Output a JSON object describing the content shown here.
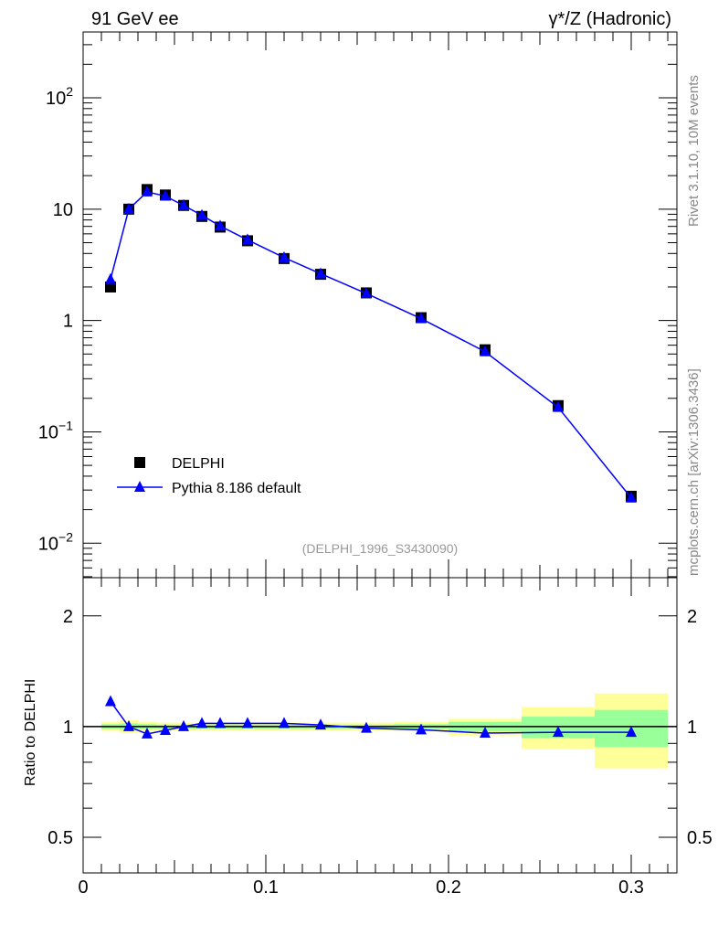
{
  "header": {
    "left": "91 GeV ee",
    "right": "γ*/Z (Hadronic)"
  },
  "side_text": {
    "rivet": "Rivet 3.1.10,  10M events",
    "mcplots": "mcplots.cern.ch [arXiv:1306.3436]"
  },
  "analysis_ref": "(DELPHI_1996_S3430090)",
  "legend": {
    "data": "DELPHI",
    "mc": "Pythia 8.186 default"
  },
  "colors": {
    "data": "#000000",
    "mc": "#0000ff",
    "band_outer": "#ffff99",
    "band_inner": "#99ff99"
  },
  "chart_data": [
    {
      "type": "scatter",
      "title": "",
      "xlabel": "",
      "ylabel": "",
      "xlim": [
        0,
        0.325
      ],
      "ylim": [
        0.0049,
        390
      ],
      "yscale": "log",
      "yticks": [
        {
          "v": 0.01,
          "base": "10",
          "exp": "−2"
        },
        {
          "v": 0.1,
          "base": "10",
          "exp": "−1"
        },
        {
          "v": 1,
          "base": "1",
          "exp": ""
        },
        {
          "v": 10,
          "base": "10",
          "exp": ""
        },
        {
          "v": 100,
          "base": "10",
          "exp": "2"
        }
      ],
      "x": [
        0.015,
        0.025,
        0.035,
        0.045,
        0.055,
        0.065,
        0.075,
        0.09,
        0.11,
        0.13,
        0.155,
        0.185,
        0.22,
        0.26,
        0.3
      ],
      "series": [
        {
          "name": "DELPHI",
          "values": [
            2.0,
            10.0,
            15.0,
            13.4,
            10.8,
            8.6,
            6.9,
            5.2,
            3.6,
            2.6,
            1.77,
            1.06,
            0.546,
            0.172,
            0.0264
          ]
        },
        {
          "name": "Pythia 8.186 default",
          "values": [
            2.34,
            10.0,
            14.3,
            13.1,
            10.8,
            8.8,
            7.05,
            5.3,
            3.67,
            2.63,
            1.75,
            1.04,
            0.525,
            0.166,
            0.0255
          ]
        }
      ],
      "legend_position": "lower-left"
    },
    {
      "type": "scatter",
      "ylabel": "Ratio to DELPHI",
      "xlim": [
        0,
        0.325
      ],
      "ylim": [
        0.4,
        2.54
      ],
      "yscale": "log",
      "yticks": [
        {
          "v": 0.5,
          "label": "0.5"
        },
        {
          "v": 1,
          "label": "1"
        },
        {
          "v": 2,
          "label": "2"
        }
      ],
      "xticks": [
        {
          "v": 0,
          "label": "0"
        },
        {
          "v": 0.1,
          "label": "0.1"
        },
        {
          "v": 0.2,
          "label": "0.2"
        },
        {
          "v": 0.3,
          "label": "0.3"
        }
      ],
      "x": [
        0.015,
        0.025,
        0.035,
        0.045,
        0.055,
        0.065,
        0.075,
        0.09,
        0.11,
        0.13,
        0.155,
        0.185,
        0.22,
        0.26,
        0.3
      ],
      "ratio": [
        1.17,
        1.0,
        0.955,
        0.977,
        1.0,
        1.02,
        1.02,
        1.02,
        1.02,
        1.01,
        0.99,
        0.98,
        0.96,
        0.965,
        0.965
      ],
      "bins": [
        {
          "lo": 0.01,
          "hi": 0.02,
          "outer": [
            0.97,
            1.03
          ],
          "inner": [
            0.985,
            1.015
          ]
        },
        {
          "lo": 0.02,
          "hi": 0.03,
          "outer": [
            0.96,
            1.04
          ],
          "inner": [
            0.98,
            1.02
          ]
        },
        {
          "lo": 0.03,
          "hi": 0.04,
          "outer": [
            0.97,
            1.03
          ],
          "inner": [
            0.985,
            1.015
          ]
        },
        {
          "lo": 0.04,
          "hi": 0.05,
          "outer": [
            0.975,
            1.025
          ],
          "inner": [
            0.988,
            1.012
          ]
        },
        {
          "lo": 0.05,
          "hi": 0.06,
          "outer": [
            0.975,
            1.025
          ],
          "inner": [
            0.988,
            1.012
          ]
        },
        {
          "lo": 0.06,
          "hi": 0.07,
          "outer": [
            0.975,
            1.025
          ],
          "inner": [
            0.988,
            1.012
          ]
        },
        {
          "lo": 0.07,
          "hi": 0.08,
          "outer": [
            0.975,
            1.025
          ],
          "inner": [
            0.988,
            1.012
          ]
        },
        {
          "lo": 0.08,
          "hi": 0.1,
          "outer": [
            0.975,
            1.025
          ],
          "inner": [
            0.988,
            1.012
          ]
        },
        {
          "lo": 0.1,
          "hi": 0.12,
          "outer": [
            0.975,
            1.025
          ],
          "inner": [
            0.988,
            1.012
          ]
        },
        {
          "lo": 0.12,
          "hi": 0.14,
          "outer": [
            0.975,
            1.025
          ],
          "inner": [
            0.988,
            1.012
          ]
        },
        {
          "lo": 0.14,
          "hi": 0.17,
          "outer": [
            0.975,
            1.025
          ],
          "inner": [
            0.988,
            1.012
          ]
        },
        {
          "lo": 0.17,
          "hi": 0.2,
          "outer": [
            0.97,
            1.03
          ],
          "inner": [
            0.985,
            1.015
          ]
        },
        {
          "lo": 0.2,
          "hi": 0.24,
          "outer": [
            0.945,
            1.05
          ],
          "inner": [
            0.97,
            1.03
          ]
        },
        {
          "lo": 0.24,
          "hi": 0.28,
          "outer": [
            0.87,
            1.13
          ],
          "inner": [
            0.93,
            1.065
          ]
        },
        {
          "lo": 0.28,
          "hi": 0.32,
          "outer": [
            0.77,
            1.23
          ],
          "inner": [
            0.88,
            1.11
          ]
        }
      ]
    }
  ]
}
